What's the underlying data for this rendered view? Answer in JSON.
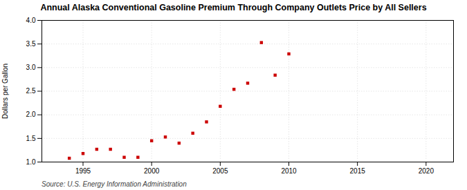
{
  "chart_data": {
    "type": "scatter",
    "title": "Annual Alaska Conventional Gasoline Premium Through Company Outlets Price by All Sellers",
    "ylabel": "Dollars per Gallon",
    "source": "Source: U.S. Energy Information Administration",
    "x": [
      1994,
      1995,
      1996,
      1997,
      1998,
      1999,
      2000,
      2001,
      2002,
      2003,
      2004,
      2005,
      2006,
      2007,
      2008,
      2009,
      2010
    ],
    "values": [
      1.08,
      1.18,
      1.27,
      1.27,
      1.1,
      1.1,
      1.45,
      1.53,
      1.4,
      1.61,
      1.85,
      2.18,
      2.54,
      2.67,
      3.53,
      2.84,
      3.29
    ],
    "color": "#cc0000",
    "marker": "square",
    "xlim": [
      1992,
      2022
    ],
    "ylim": [
      1.0,
      4.0
    ],
    "xticks": [
      1995,
      2000,
      2005,
      2010,
      2015,
      2020
    ],
    "yticks": [
      {
        "value": 1.0,
        "label": "1.0"
      },
      1.5,
      {
        "value": 2.0,
        "label": "2.0"
      },
      2.5,
      {
        "value": 3.0,
        "label": "3.0"
      },
      3.5,
      {
        "value": 4.0,
        "label": "4.0"
      }
    ],
    "grid": true
  }
}
